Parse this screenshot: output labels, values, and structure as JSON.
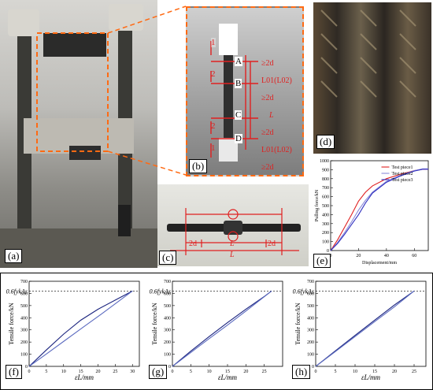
{
  "labels": {
    "a": "(a)",
    "b": "(b)",
    "c": "(c)",
    "d": "(d)",
    "e": "(e)",
    "f": "(f)",
    "g": "(g)",
    "h": "(h)"
  },
  "specimen_b": {
    "A": "A",
    "B": "B",
    "C": "C",
    "D": "D",
    "n1_top": "1",
    "n2_top": "2",
    "n2_bot": "2",
    "n1_bot": "1",
    "ge2d_1": "≥2d",
    "L01_L02_top": "L01(L02)",
    "ge2d_2": "≥2d",
    "L": "L",
    "ge2d_3": "≥2d",
    "L01_L02_bot": "L01(L02)",
    "ge2d_4": "≥2d"
  },
  "specimen_c": {
    "left": "2d",
    "mid": "L",
    "right": "2d",
    "bottom": "L"
  },
  "chart_data": [
    {
      "id": "e",
      "type": "line",
      "xlabel": "Displacement/mm",
      "ylabel": "Pulling force/kN",
      "xlim": [
        0,
        70
      ],
      "ylim": [
        0,
        1000
      ],
      "xticks": [
        0,
        20,
        40,
        60
      ],
      "yticks": [
        0,
        100,
        200,
        300,
        400,
        500,
        600,
        700,
        800,
        900,
        1000
      ],
      "legend": "top-right",
      "series": [
        {
          "name": "Test piece1",
          "color": "#e02020",
          "x": [
            0,
            5,
            10,
            15,
            20,
            25,
            30,
            40,
            50,
            60,
            66,
            70
          ],
          "y": [
            0,
            120,
            260,
            400,
            550,
            650,
            720,
            800,
            850,
            890,
            905,
            905
          ]
        },
        {
          "name": "Test piece2",
          "color": "#8a8ad8",
          "x": [
            0,
            5,
            10,
            15,
            20,
            25,
            30,
            40,
            50,
            60,
            66,
            70
          ],
          "y": [
            0,
            90,
            200,
            320,
            450,
            560,
            650,
            770,
            840,
            890,
            910,
            910
          ]
        },
        {
          "name": "Test piece3",
          "color": "#3030c0",
          "x": [
            0,
            5,
            10,
            15,
            20,
            25,
            30,
            40,
            50,
            60,
            66,
            70
          ],
          "y": [
            0,
            80,
            180,
            290,
            400,
            530,
            640,
            760,
            830,
            885,
            905,
            905
          ]
        }
      ]
    },
    {
      "id": "f",
      "type": "line",
      "xlabel": "εL/mm",
      "ylabel": "Tensile force/kN",
      "annotation": "0.6fykAs",
      "xlim": [
        0,
        32
      ],
      "ylim": [
        0,
        700
      ],
      "xticks": [
        0,
        5,
        10,
        15,
        20,
        25,
        30
      ],
      "yticks": [
        0,
        100,
        200,
        300,
        400,
        500,
        600,
        700
      ],
      "ref_y": 620,
      "series": [
        {
          "color": "#1a237e",
          "x": [
            0,
            5,
            10,
            15,
            20,
            25,
            30
          ],
          "y": [
            0,
            135,
            265,
            380,
            470,
            545,
            620
          ]
        },
        {
          "color": "#5c6bc0",
          "x": [
            30,
            25,
            20,
            15,
            10,
            5,
            0
          ],
          "y": [
            620,
            515,
            410,
            308,
            205,
            102,
            0
          ]
        }
      ]
    },
    {
      "id": "g",
      "type": "line",
      "xlabel": "εL/mm",
      "ylabel": "Tensile force/kN",
      "annotation": "0.6fykAs",
      "xlim": [
        0,
        30
      ],
      "ylim": [
        0,
        700
      ],
      "xticks": [
        0,
        5,
        10,
        15,
        20,
        25
      ],
      "yticks": [
        0,
        100,
        200,
        300,
        400,
        500,
        600,
        700
      ],
      "ref_y": 620,
      "series": [
        {
          "color": "#1a237e",
          "x": [
            0,
            5,
            10,
            15,
            20,
            25,
            27
          ],
          "y": [
            0,
            125,
            245,
            360,
            470,
            575,
            620
          ]
        },
        {
          "color": "#5c6bc0",
          "x": [
            27,
            20,
            15,
            10,
            5,
            0
          ],
          "y": [
            620,
            455,
            340,
            228,
            114,
            0
          ]
        }
      ]
    },
    {
      "id": "h",
      "type": "line",
      "xlabel": "εL/mm",
      "ylabel": "Tensile force/kN",
      "annotation": "0.6fykAs",
      "xlim": [
        0,
        28
      ],
      "ylim": [
        0,
        700
      ],
      "xticks": [
        0,
        5,
        10,
        15,
        20,
        25
      ],
      "yticks": [
        0,
        100,
        200,
        300,
        400,
        500,
        600,
        700
      ],
      "ref_y": 620,
      "series": [
        {
          "color": "#1a237e",
          "x": [
            0,
            5,
            10,
            15,
            20,
            25
          ],
          "y": [
            0,
            128,
            255,
            380,
            505,
            620
          ]
        },
        {
          "color": "#5c6bc0",
          "x": [
            25,
            20,
            15,
            10,
            5,
            0
          ],
          "y": [
            620,
            490,
            368,
            245,
            122,
            0
          ]
        }
      ]
    }
  ]
}
